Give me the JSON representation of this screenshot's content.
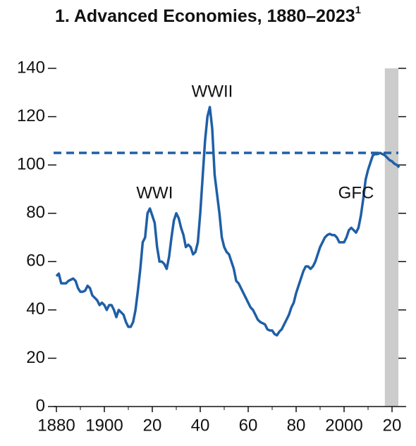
{
  "chart_data": {
    "type": "line",
    "title": "1. Advanced Economies, 1880–2023",
    "title_note": "1",
    "x": [
      1880,
      1881,
      1882,
      1883,
      1884,
      1885,
      1886,
      1887,
      1888,
      1889,
      1890,
      1891,
      1892,
      1893,
      1894,
      1895,
      1896,
      1897,
      1898,
      1899,
      1900,
      1901,
      1902,
      1903,
      1904,
      1905,
      1906,
      1907,
      1908,
      1909,
      1910,
      1911,
      1912,
      1913,
      1914,
      1915,
      1916,
      1917,
      1918,
      1919,
      1920,
      1921,
      1922,
      1923,
      1924,
      1925,
      1926,
      1927,
      1928,
      1929,
      1930,
      1931,
      1932,
      1933,
      1934,
      1935,
      1936,
      1937,
      1938,
      1939,
      1940,
      1941,
      1942,
      1943,
      1944,
      1945,
      1946,
      1947,
      1948,
      1949,
      1950,
      1951,
      1952,
      1953,
      1954,
      1955,
      1956,
      1957,
      1958,
      1959,
      1960,
      1961,
      1962,
      1963,
      1964,
      1965,
      1966,
      1967,
      1968,
      1969,
      1970,
      1971,
      1972,
      1973,
      1974,
      1975,
      1976,
      1977,
      1978,
      1979,
      1980,
      1981,
      1982,
      1983,
      1984,
      1985,
      1986,
      1987,
      1988,
      1989,
      1990,
      1991,
      1992,
      1993,
      1994,
      1995,
      1996,
      1997,
      1998,
      1999,
      2000,
      2001,
      2002,
      2003,
      2004,
      2005,
      2006,
      2007,
      2008,
      2009,
      2010,
      2011,
      2012,
      2013,
      2014,
      2015,
      2016,
      2017,
      2018,
      2019,
      2020,
      2021,
      2022,
      2023
    ],
    "series": [
      {
        "color": "#1f5fa6",
        "values": [
          54,
          55,
          51,
          51,
          51,
          52,
          52.5,
          53,
          52,
          49,
          47.5,
          47.5,
          48,
          50,
          49,
          46,
          45,
          44,
          42,
          43,
          42,
          40,
          42,
          42,
          40,
          37,
          40,
          39,
          38,
          35,
          33,
          33,
          35,
          40,
          48,
          57,
          68,
          70,
          80,
          82,
          79,
          76,
          66,
          60,
          60,
          59,
          57,
          62,
          70,
          77,
          80,
          78,
          74,
          71,
          66,
          67,
          66,
          63,
          64,
          68,
          80,
          95,
          110,
          120,
          124,
          115,
          96,
          88,
          80,
          70,
          66,
          64,
          63,
          60,
          57,
          52,
          51,
          49,
          47,
          45,
          43,
          41,
          40,
          38,
          36,
          35,
          34.5,
          34,
          32,
          31.5,
          31.5,
          30,
          29.5,
          31,
          32,
          34,
          36,
          38,
          41,
          43,
          47,
          50,
          53,
          56,
          58,
          58,
          57,
          58,
          60,
          63,
          66,
          68,
          70,
          71,
          71.5,
          71,
          71,
          70,
          68,
          68,
          68,
          70,
          73,
          74,
          73,
          72,
          74,
          79,
          86,
          94,
          98,
          101,
          104,
          104.5,
          104.5,
          105,
          104.5,
          104,
          103,
          102,
          101.5,
          100.5,
          100,
          99
        ]
      }
    ],
    "reference_line": 105,
    "shade": [
      2017,
      2023
    ],
    "shade_color": "#cccccc",
    "annotations": [
      {
        "text": "WWI",
        "x": 1921,
        "y": 88
      },
      {
        "text": "WWII",
        "x": 1945,
        "y": 130
      },
      {
        "text": "GFC",
        "x": 2005,
        "y": 88
      }
    ],
    "xlim": [
      1879,
      2023
    ],
    "ylim": [
      0,
      140
    ],
    "xticks": [
      1880,
      1900,
      {
        "value": 1920,
        "label": "20"
      },
      {
        "value": 1940,
        "label": "40"
      },
      {
        "value": 1960,
        "label": "60"
      },
      {
        "value": 1980,
        "label": "80"
      },
      2000,
      {
        "value": 2020,
        "label": "20"
      }
    ],
    "yticks": [
      0,
      20,
      40,
      60,
      80,
      100,
      120,
      140
    ]
  }
}
